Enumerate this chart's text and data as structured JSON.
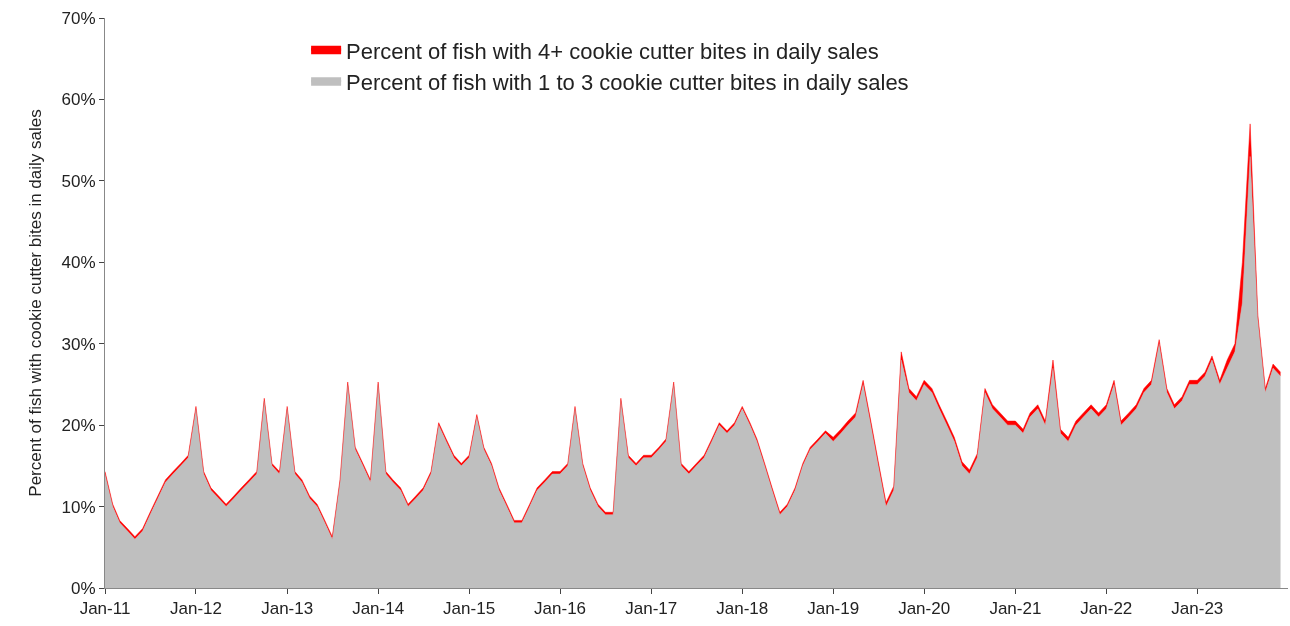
{
  "chart_data": {
    "type": "area",
    "stacked": true,
    "ylabel": "Percent of fish with cookie cutter bites in daily sales",
    "x": [
      "2011-01",
      "2011-02",
      "2011-03",
      "2011-04",
      "2011-05",
      "2011-06",
      "2011-07",
      "2011-08",
      "2011-09",
      "2011-10",
      "2011-11",
      "2011-12",
      "2012-01",
      "2012-02",
      "2012-03",
      "2012-04",
      "2012-05",
      "2012-06",
      "2012-07",
      "2012-08",
      "2012-09",
      "2012-10",
      "2012-11",
      "2012-12",
      "2013-01",
      "2013-02",
      "2013-03",
      "2013-04",
      "2013-05",
      "2013-06",
      "2013-07",
      "2013-08",
      "2013-09",
      "2013-10",
      "2013-11",
      "2013-12",
      "2014-01",
      "2014-02",
      "2014-03",
      "2014-04",
      "2014-05",
      "2014-06",
      "2014-07",
      "2014-08",
      "2014-09",
      "2014-10",
      "2014-11",
      "2014-12",
      "2015-01",
      "2015-02",
      "2015-03",
      "2015-04",
      "2015-05",
      "2015-06",
      "2015-07",
      "2015-08",
      "2015-09",
      "2015-10",
      "2015-11",
      "2015-12",
      "2016-01",
      "2016-02",
      "2016-03",
      "2016-04",
      "2016-05",
      "2016-06",
      "2016-07",
      "2016-08",
      "2016-09",
      "2016-10",
      "2016-11",
      "2016-12",
      "2017-01",
      "2017-02",
      "2017-03",
      "2017-04",
      "2017-05",
      "2017-06",
      "2017-07",
      "2017-08",
      "2017-09",
      "2017-10",
      "2017-11",
      "2017-12",
      "2018-01",
      "2018-02",
      "2018-03",
      "2018-04",
      "2018-05",
      "2018-06",
      "2018-07",
      "2018-08",
      "2018-09",
      "2018-10",
      "2018-11",
      "2018-12",
      "2019-01",
      "2019-02",
      "2019-03",
      "2019-04",
      "2019-05",
      "2019-06",
      "2019-07",
      "2019-08",
      "2019-09",
      "2019-10",
      "2019-11",
      "2019-12",
      "2020-01",
      "2020-02",
      "2020-03",
      "2020-04",
      "2020-05",
      "2020-06",
      "2020-07",
      "2020-08",
      "2020-09",
      "2020-10",
      "2020-11",
      "2020-12",
      "2021-01",
      "2021-02",
      "2021-03",
      "2021-04",
      "2021-05",
      "2021-06",
      "2021-07",
      "2021-08",
      "2021-09",
      "2021-10",
      "2021-11",
      "2021-12",
      "2022-01",
      "2022-02",
      "2022-03",
      "2022-04",
      "2022-05",
      "2022-06",
      "2022-07",
      "2022-08",
      "2022-09",
      "2022-10",
      "2022-11",
      "2022-12",
      "2023-01",
      "2023-02",
      "2023-03",
      "2023-04",
      "2023-05",
      "2023-06",
      "2023-07",
      "2023-08",
      "2023-09",
      "2023-10",
      "2023-11",
      "2023-12"
    ],
    "series": [
      {
        "name": "Percent of fish with 1 to 3 cookie cutter bites in daily sales",
        "color": "#bfbfbf",
        "values": [
          14,
          10,
          8,
          7,
          6,
          7,
          9,
          11,
          13,
          14,
          15,
          16,
          22,
          14,
          12,
          11,
          10,
          11,
          12,
          13,
          14,
          23,
          15,
          14,
          22,
          14,
          13,
          11,
          10,
          8,
          6,
          13,
          25,
          17,
          15,
          13,
          25,
          14,
          13,
          12,
          10,
          11,
          12,
          14,
          20,
          18,
          16,
          15,
          16,
          21,
          17,
          15,
          12,
          10,
          8,
          8,
          10,
          12,
          13,
          14,
          14,
          15,
          22,
          15,
          12,
          10,
          9,
          9,
          23,
          16,
          15,
          16,
          16,
          17,
          18,
          25,
          15,
          14,
          15,
          16,
          18,
          20,
          19,
          20,
          22,
          20,
          18,
          15,
          12,
          9,
          10,
          12,
          15,
          17,
          18,
          19,
          18,
          19,
          20,
          21,
          25,
          20,
          15,
          10,
          12,
          28,
          24,
          23,
          25,
          24,
          22,
          20,
          18,
          15,
          14,
          16,
          24,
          22,
          21,
          20,
          20,
          19,
          21,
          22,
          20,
          27,
          19,
          18,
          20,
          21,
          22,
          21,
          22,
          25,
          20,
          21,
          22,
          24,
          25,
          30,
          24,
          22,
          23,
          25,
          25,
          26,
          28,
          25,
          27,
          29,
          35,
          53,
          33,
          24,
          27,
          26
        ]
      },
      {
        "name": "Percent of fish with 4+ cookie cutter bites in daily sales",
        "color": "#ff0000",
        "values": [
          0.3,
          0.3,
          0.3,
          0.3,
          0.3,
          0.3,
          0.3,
          0.3,
          0.3,
          0.3,
          0.3,
          0.3,
          0.3,
          0.3,
          0.3,
          0.3,
          0.3,
          0.3,
          0.3,
          0.3,
          0.3,
          0.3,
          0.3,
          0.3,
          0.3,
          0.3,
          0.3,
          0.3,
          0.3,
          0.3,
          0.3,
          0.3,
          0.3,
          0.3,
          0.3,
          0.3,
          0.3,
          0.3,
          0.3,
          0.3,
          0.3,
          0.3,
          0.3,
          0.3,
          0.3,
          0.3,
          0.3,
          0.3,
          0.3,
          0.3,
          0.3,
          0.3,
          0.3,
          0.3,
          0.3,
          0.3,
          0.3,
          0.3,
          0.3,
          0.3,
          0.3,
          0.3,
          0.3,
          0.3,
          0.3,
          0.3,
          0.3,
          0.3,
          0.3,
          0.3,
          0.3,
          0.3,
          0.3,
          0.3,
          0.3,
          0.3,
          0.3,
          0.3,
          0.3,
          0.3,
          0.3,
          0.3,
          0.3,
          0.3,
          0.3,
          0.3,
          0.3,
          0.3,
          0.3,
          0.3,
          0.3,
          0.3,
          0.3,
          0.3,
          0.3,
          0.3,
          0.5,
          0.5,
          0.5,
          0.5,
          0.5,
          0.5,
          0.5,
          0.5,
          0.5,
          1,
          0.5,
          0.5,
          0.5,
          0.5,
          0.5,
          0.5,
          0.5,
          0.5,
          0.5,
          0.5,
          0.5,
          0.5,
          0.5,
          0.5,
          0.5,
          0.5,
          0.5,
          0.5,
          0.5,
          1,
          0.5,
          0.5,
          0.5,
          0.5,
          0.5,
          0.5,
          0.5,
          0.5,
          0.5,
          0.5,
          0.5,
          0.5,
          0.5,
          0.5,
          0.5,
          0.5,
          0.5,
          0.5,
          0.5,
          0.5,
          0.5,
          0.5,
          1,
          1,
          5,
          4,
          0.5,
          0.5,
          0.5,
          0.5
        ]
      }
    ],
    "xlim": [
      "2011-01-01",
      "2023-12-31"
    ],
    "xticks": [
      {
        "value": "2011-01",
        "label": "Jan-11"
      },
      {
        "value": "2012-01",
        "label": "Jan-12"
      },
      {
        "value": "2013-01",
        "label": "Jan-13"
      },
      {
        "value": "2014-01",
        "label": "Jan-14"
      },
      {
        "value": "2015-01",
        "label": "Jan-15"
      },
      {
        "value": "2016-01",
        "label": "Jan-16"
      },
      {
        "value": "2017-01",
        "label": "Jan-17"
      },
      {
        "value": "2018-01",
        "label": "Jan-18"
      },
      {
        "value": "2019-01",
        "label": "Jan-19"
      },
      {
        "value": "2020-01",
        "label": "Jan-20"
      },
      {
        "value": "2021-01",
        "label": "Jan-21"
      },
      {
        "value": "2022-01",
        "label": "Jan-22"
      },
      {
        "value": "2023-01",
        "label": "Jan-23"
      }
    ],
    "ylim": [
      0,
      70
    ],
    "yticks": [
      {
        "value": 0,
        "label": "0%"
      },
      {
        "value": 10,
        "label": "10%"
      },
      {
        "value": 20,
        "label": "20%"
      },
      {
        "value": 30,
        "label": "30%"
      },
      {
        "value": 40,
        "label": "40%"
      },
      {
        "value": 50,
        "label": "50%"
      },
      {
        "value": 60,
        "label": "60%"
      },
      {
        "value": 70,
        "label": "70%"
      }
    ],
    "legend": "top",
    "marker": "none"
  }
}
